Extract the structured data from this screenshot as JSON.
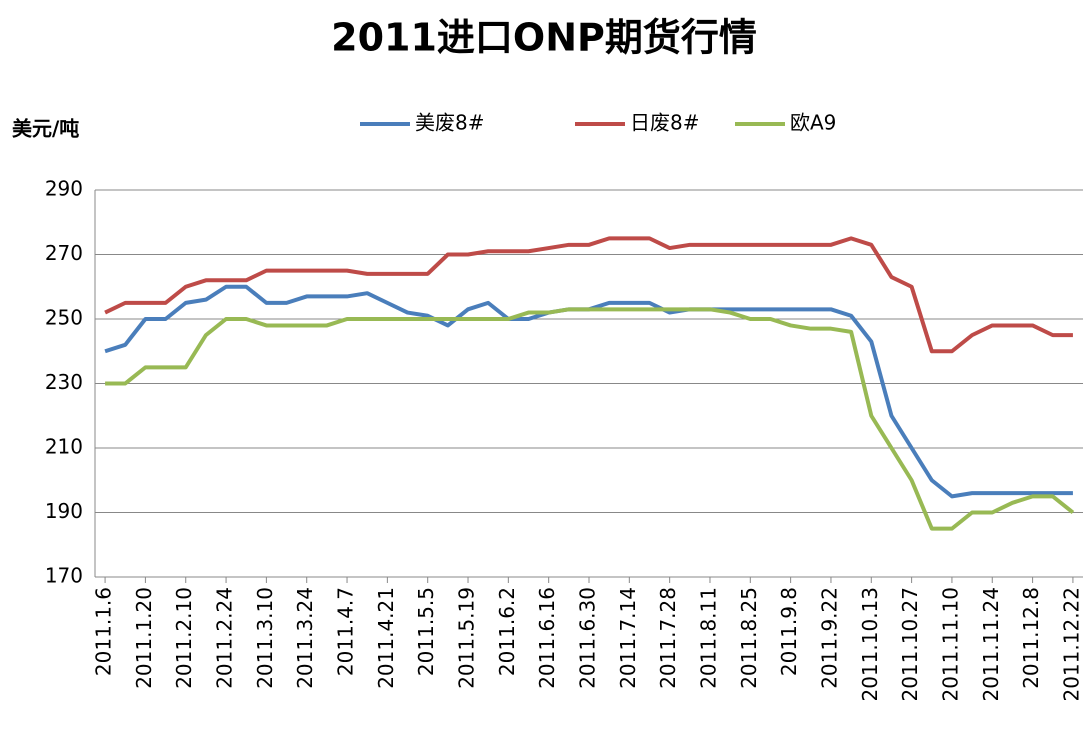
{
  "chart_data": {
    "type": "line",
    "title": "2011进口ONP期货行情",
    "y_label": "美元/吨",
    "categories": [
      "2011.1.6",
      null,
      "2011.1.20",
      null,
      "2011.2.10",
      null,
      "2011.2.24",
      null,
      "2011.3.10",
      null,
      "2011.3.24",
      null,
      "2011.4.7",
      null,
      "2011.4.21",
      null,
      "2011.5.5",
      null,
      "2011.5.19",
      null,
      "2011.6.2",
      null,
      "2011.6.16",
      null,
      "2011.6.30",
      null,
      "2011.7.14",
      null,
      "2011.7.28",
      null,
      "2011.8.11",
      null,
      "2011.8.25",
      null,
      "2011.9.8",
      null,
      "2011.9.22",
      null,
      "2011.10.13",
      null,
      "2011.10.27",
      null,
      "2011.11.10",
      null,
      "2011.11.24",
      null,
      "2011.12.8",
      null,
      "2011.12.22"
    ],
    "series": [
      {
        "name": "美废8#",
        "color": "#4a7ebb",
        "values": [
          240,
          242,
          250,
          250,
          255,
          256,
          260,
          260,
          255,
          255,
          257,
          257,
          257,
          258,
          255,
          252,
          251,
          248,
          253,
          255,
          250,
          250,
          252,
          253,
          253,
          255,
          255,
          255,
          252,
          253,
          253,
          253,
          253,
          253,
          253,
          253,
          253,
          251,
          243,
          220,
          210,
          200,
          195,
          196,
          196,
          196,
          196,
          196,
          196
        ]
      },
      {
        "name": "日废8#",
        "color": "#be4b48",
        "values": [
          252,
          255,
          255,
          255,
          260,
          262,
          262,
          262,
          265,
          265,
          265,
          265,
          265,
          264,
          264,
          264,
          264,
          270,
          270,
          271,
          271,
          271,
          272,
          273,
          273,
          275,
          275,
          275,
          272,
          273,
          273,
          273,
          273,
          273,
          273,
          273,
          273,
          275,
          273,
          263,
          260,
          240,
          240,
          245,
          248,
          248,
          248,
          245,
          245
        ]
      },
      {
        "name": "欧A9",
        "color": "#98b954",
        "values": [
          230,
          230,
          235,
          235,
          235,
          245,
          250,
          250,
          248,
          248,
          248,
          248,
          250,
          250,
          250,
          250,
          250,
          250,
          250,
          250,
          250,
          252,
          252,
          253,
          253,
          253,
          253,
          253,
          253,
          253,
          253,
          252,
          250,
          250,
          248,
          247,
          247,
          246,
          220,
          210,
          200,
          185,
          185,
          190,
          190,
          193,
          195,
          195,
          190
        ]
      }
    ],
    "ylim": [
      170,
      290
    ],
    "yticks": [
      170,
      190,
      210,
      230,
      250,
      270,
      290
    ],
    "grid": true,
    "legend": "top"
  }
}
